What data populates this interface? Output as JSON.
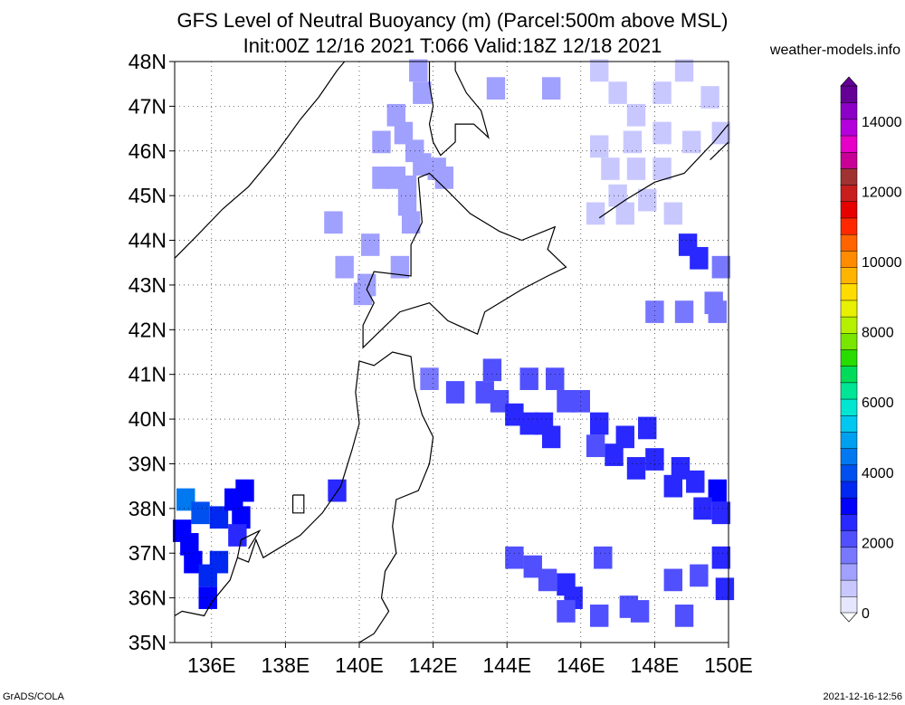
{
  "header": {
    "title_line1": "GFS Level of Neutral Buoyancy (m) (Parcel:500m above MSL)",
    "title_line2": "Init:00Z 12/16 2021 T:066 Valid:18Z 12/18 2021",
    "site": "weather-models.info"
  },
  "footer": {
    "left": "GrADS/COLA",
    "right": "2021-12-16-12:56"
  },
  "chart_data": {
    "type": "heatmap",
    "title": "GFS Level of Neutral Buoyancy (m) (Parcel:500m above MSL)",
    "subtitle": "Init:00Z 12/16 2021 T:066 Valid:18Z 12/18 2021",
    "xlim": [
      135,
      150
    ],
    "ylim": [
      35,
      48
    ],
    "grid": true,
    "x_ticks": [
      136,
      138,
      140,
      142,
      144,
      146,
      148,
      150
    ],
    "x_tick_labels": [
      "136E",
      "138E",
      "140E",
      "142E",
      "144E",
      "146E",
      "148E",
      "150E"
    ],
    "y_ticks": [
      35,
      36,
      37,
      38,
      39,
      40,
      41,
      42,
      43,
      44,
      45,
      46,
      47,
      48
    ],
    "y_tick_labels": [
      "35N",
      "36N",
      "37N",
      "38N",
      "39N",
      "40N",
      "41N",
      "42N",
      "43N",
      "44N",
      "45N",
      "46N",
      "47N",
      "48N"
    ],
    "colorbar": {
      "ticks": [
        0,
        2000,
        4000,
        6000,
        8000,
        10000,
        12000,
        14000
      ],
      "tick_labels": [
        "0",
        "2000",
        "4000",
        "6000",
        "8000",
        "10000",
        "12000",
        "14000"
      ],
      "min": 0,
      "max": 15000,
      "colors": [
        "#e6e6ff",
        "#c8c8ff",
        "#a0a0ff",
        "#7878ff",
        "#5050ff",
        "#2828ff",
        "#0000ff",
        "#0028f0",
        "#0050f0",
        "#0078f0",
        "#00a0f0",
        "#00c8f0",
        "#00e6d2",
        "#00e696",
        "#00dc5a",
        "#28dc00",
        "#78e600",
        "#b4f000",
        "#e6f000",
        "#ffdc00",
        "#ffb400",
        "#ff8c00",
        "#ff6400",
        "#ff2800",
        "#e60000",
        "#c81e1e",
        "#a03232",
        "#c80096",
        "#e600c8",
        "#b400dc",
        "#8c00c8",
        "#640096"
      ]
    },
    "cells": [
      [
        141.6,
        47.8,
        1200
      ],
      [
        141.7,
        47.3,
        1200
      ],
      [
        143.7,
        47.4,
        1400
      ],
      [
        145.2,
        47.4,
        1400
      ],
      [
        141.0,
        46.8,
        1000
      ],
      [
        141.2,
        46.4,
        1100
      ],
      [
        140.6,
        46.2,
        1000
      ],
      [
        141.5,
        46.0,
        1200
      ],
      [
        141.7,
        45.7,
        1200
      ],
      [
        142.1,
        45.6,
        1300
      ],
      [
        142.3,
        45.4,
        1200
      ],
      [
        140.6,
        45.4,
        1100
      ],
      [
        141.0,
        45.4,
        1000
      ],
      [
        141.3,
        45.2,
        1100
      ],
      [
        141.3,
        44.8,
        1000
      ],
      [
        141.4,
        44.4,
        1100
      ],
      [
        139.3,
        44.4,
        1400
      ],
      [
        140.3,
        43.9,
        1200
      ],
      [
        139.6,
        43.4,
        1300
      ],
      [
        140.2,
        43.0,
        1000
      ],
      [
        140.1,
        42.8,
        1100
      ],
      [
        141.1,
        43.4,
        1300
      ],
      [
        146.5,
        47.8,
        800
      ],
      [
        147.0,
        47.3,
        900
      ],
      [
        147.5,
        46.8,
        900
      ],
      [
        148.2,
        47.3,
        700
      ],
      [
        148.8,
        47.8,
        700
      ],
      [
        149.5,
        47.2,
        600
      ],
      [
        149.8,
        46.4,
        600
      ],
      [
        149.0,
        46.2,
        700
      ],
      [
        148.2,
        46.4,
        800
      ],
      [
        147.4,
        46.2,
        800
      ],
      [
        146.5,
        46.1,
        900
      ],
      [
        146.8,
        45.6,
        900
      ],
      [
        147.5,
        45.6,
        800
      ],
      [
        148.2,
        45.6,
        700
      ],
      [
        147.0,
        45.0,
        900
      ],
      [
        147.8,
        44.9,
        700
      ],
      [
        148.5,
        44.6,
        800
      ],
      [
        146.4,
        44.6,
        900
      ],
      [
        147.2,
        44.6,
        900
      ],
      [
        148.9,
        43.9,
        2800
      ],
      [
        149.2,
        43.6,
        2600
      ],
      [
        149.8,
        43.4,
        1600
      ],
      [
        149.6,
        42.6,
        1500
      ],
      [
        148.8,
        42.4,
        1800
      ],
      [
        148.0,
        42.4,
        1800
      ],
      [
        149.7,
        42.4,
        1700
      ],
      [
        141.9,
        40.9,
        1700
      ],
      [
        142.6,
        40.6,
        2000
      ],
      [
        143.4,
        40.6,
        2100
      ],
      [
        143.6,
        41.1,
        1900
      ],
      [
        143.8,
        40.4,
        2200
      ],
      [
        144.2,
        40.1,
        2400
      ],
      [
        144.6,
        39.9,
        2500
      ],
      [
        145.0,
        39.9,
        2600
      ],
      [
        145.2,
        39.6,
        2400
      ],
      [
        145.6,
        40.4,
        2300
      ],
      [
        144.6,
        40.9,
        2100
      ],
      [
        145.3,
        40.9,
        2100
      ],
      [
        146.0,
        40.4,
        2200
      ],
      [
        146.4,
        39.4,
        2300
      ],
      [
        146.9,
        39.2,
        2500
      ],
      [
        147.2,
        39.6,
        2600
      ],
      [
        147.8,
        39.8,
        2600
      ],
      [
        146.5,
        39.9,
        2500
      ],
      [
        148.0,
        39.1,
        2700
      ],
      [
        148.7,
        38.9,
        2700
      ],
      [
        149.1,
        38.6,
        2800
      ],
      [
        149.7,
        38.4,
        2900
      ],
      [
        149.3,
        38.0,
        2800
      ],
      [
        148.5,
        38.5,
        2700
      ],
      [
        149.8,
        37.9,
        2800
      ],
      [
        147.5,
        38.9,
        2700
      ],
      [
        144.2,
        36.9,
        2000
      ],
      [
        144.7,
        36.7,
        2200
      ],
      [
        145.1,
        36.4,
        2300
      ],
      [
        145.6,
        36.3,
        2400
      ],
      [
        145.8,
        36.0,
        2500
      ],
      [
        145.6,
        35.7,
        2300
      ],
      [
        146.6,
        36.9,
        1900
      ],
      [
        146.5,
        35.6,
        2000
      ],
      [
        147.6,
        35.7,
        2000
      ],
      [
        147.3,
        35.8,
        2100
      ],
      [
        148.5,
        36.4,
        2200
      ],
      [
        149.2,
        36.5,
        2300
      ],
      [
        149.8,
        36.9,
        2400
      ],
      [
        149.9,
        36.2,
        2500
      ],
      [
        148.8,
        35.6,
        1900
      ],
      [
        139.4,
        38.4,
        2600
      ],
      [
        135.3,
        38.2,
        4300
      ],
      [
        135.7,
        37.9,
        3800
      ],
      [
        136.2,
        37.8,
        3500
      ],
      [
        136.6,
        38.2,
        3200
      ],
      [
        136.9,
        38.4,
        3200
      ],
      [
        136.8,
        37.8,
        3000
      ],
      [
        135.2,
        37.5,
        3000
      ],
      [
        135.4,
        37.2,
        3000
      ],
      [
        135.5,
        36.8,
        3200
      ],
      [
        135.9,
        36.5,
        3300
      ],
      [
        136.2,
        36.8,
        3400
      ],
      [
        135.9,
        36.0,
        3100
      ],
      [
        136.7,
        37.4,
        2500
      ]
    ]
  }
}
